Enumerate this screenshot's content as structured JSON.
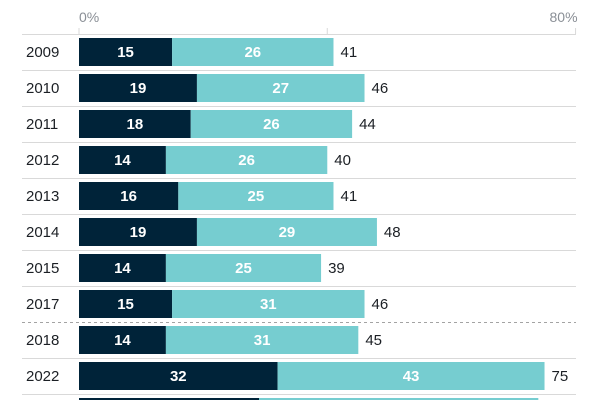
{
  "colors": {
    "series_1": "#002339",
    "series_2": "#76cdd0",
    "label_on_dark": "#ffffff",
    "label_on_light": "#ffffff",
    "grid": "#d9d9d9",
    "divider": "#a3a3a3"
  },
  "chart_data": {
    "type": "bar",
    "orientation": "horizontal",
    "stacked": true,
    "axis_ticks": [
      "0%",
      "80%"
    ],
    "xlim": [
      0,
      80
    ],
    "categories": [
      "2009",
      "2010",
      "2011",
      "2012",
      "2013",
      "2014",
      "2015",
      "2017",
      "2018",
      "2022"
    ],
    "series": [
      {
        "values": [
          15,
          19,
          18,
          14,
          16,
          19,
          14,
          15,
          14,
          32
        ]
      },
      {
        "values": [
          26,
          27,
          26,
          26,
          25,
          29,
          25,
          31,
          31,
          43
        ]
      }
    ],
    "totals": [
      "41",
      "46",
      "44",
      "40",
      "41",
      "48",
      "39",
      "46",
      "45",
      "75"
    ],
    "divider_after_category": "2017"
  }
}
